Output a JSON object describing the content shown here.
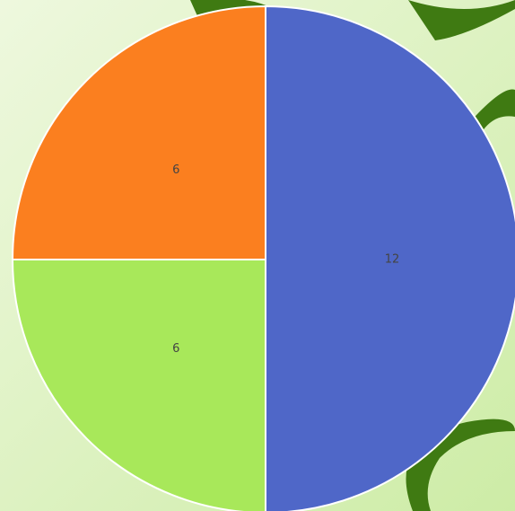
{
  "chart_data": {
    "type": "pie",
    "values": [
      12,
      6,
      6
    ],
    "colors": [
      "#4f67c8",
      "#a8e85a",
      "#fb7f1f"
    ]
  }
}
